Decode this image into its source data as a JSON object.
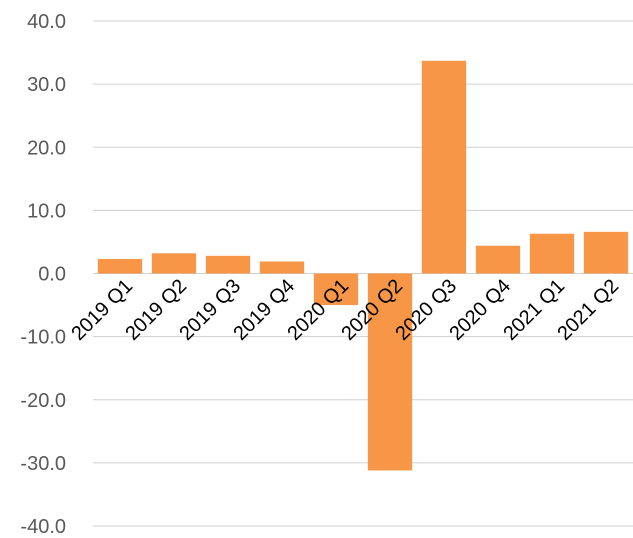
{
  "chart_data": {
    "type": "bar",
    "title": "",
    "xlabel": "",
    "ylabel": "",
    "categories": [
      "2019 Q1",
      "2019 Q2",
      "2019 Q3",
      "2019 Q4",
      "2020 Q1",
      "2020 Q2",
      "2020 Q3",
      "2020 Q4",
      "2021 Q1",
      "2021 Q2"
    ],
    "values": [
      2.3,
      3.2,
      2.8,
      1.9,
      -5.0,
      -31.2,
      33.7,
      4.4,
      6.3,
      6.6
    ],
    "ylim": [
      -40,
      40
    ],
    "yticks": [
      40,
      30,
      20,
      10,
      0,
      -10,
      -20,
      -30,
      -40
    ],
    "ytick_labels": [
      "40.0",
      "30.0",
      "20.0",
      "10.0",
      "0.0",
      "-10.0",
      "-20.0",
      "-30.0",
      "-40.0"
    ],
    "grid": true,
    "legend": "none",
    "bar_color": "#f79646",
    "grid_color": "#d0d0d0",
    "tick_color": "#595959",
    "category_label_color": "#000000"
  }
}
